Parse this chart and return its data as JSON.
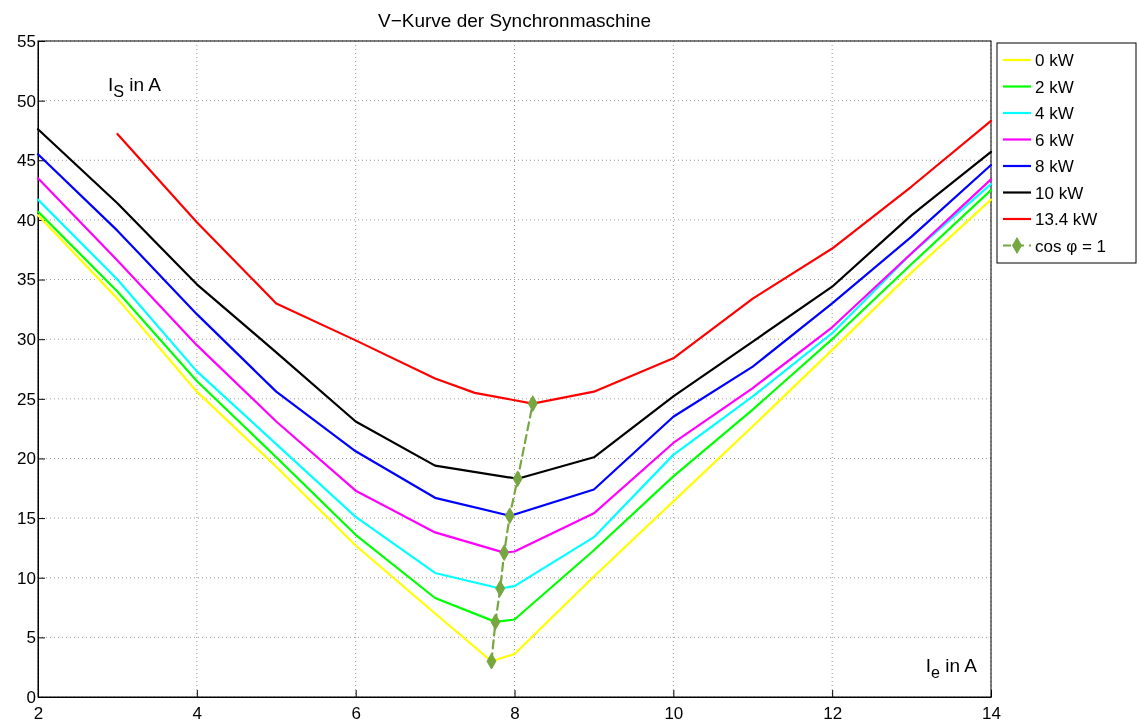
{
  "chart_data": {
    "type": "line",
    "title": "V−Kurve der Synchronmaschine",
    "xlabel": "I$_{e}$ in A",
    "ylabel": "I$_{S}$ in A",
    "xlim": [
      2,
      14
    ],
    "ylim": [
      0,
      55
    ],
    "xticks": [
      2,
      4,
      6,
      8,
      10,
      12,
      14
    ],
    "yticks": [
      0,
      5,
      10,
      15,
      20,
      25,
      30,
      35,
      40,
      45,
      50,
      55
    ],
    "grid": true,
    "legend": "right",
    "series": [
      {
        "name": "0 kW",
        "color": "#ffff00",
        "x": [
          2,
          3,
          4,
          5,
          6,
          7,
          7.71,
          8,
          9,
          10,
          11,
          12,
          13,
          14
        ],
        "values": [
          40.4,
          33.4,
          25.6,
          19.3,
          12.7,
          7.0,
          3.0,
          3.6,
          10.1,
          16.4,
          22.7,
          29.1,
          35.6,
          41.7
        ]
      },
      {
        "name": "2 kW",
        "color": "#00ff00",
        "x": [
          2,
          3,
          4,
          5,
          6,
          7,
          7.76,
          8,
          9,
          10,
          11,
          12,
          13,
          14
        ],
        "values": [
          40.7,
          34.0,
          26.5,
          20.1,
          13.6,
          8.3,
          6.3,
          6.5,
          12.3,
          18.5,
          24.1,
          30.0,
          36.3,
          42.5
        ]
      },
      {
        "name": "4 kW",
        "color": "#00ffff",
        "x": [
          2,
          3,
          4,
          5,
          6,
          7,
          7.82,
          8,
          9,
          10,
          11,
          12,
          13,
          14
        ],
        "values": [
          41.7,
          35.0,
          27.3,
          21.2,
          15.1,
          10.4,
          9.1,
          9.3,
          13.4,
          20.3,
          25.2,
          30.5,
          37.2,
          43.0
        ]
      },
      {
        "name": "6 kW",
        "color": "#ff00ff",
        "x": [
          2,
          3,
          4,
          5,
          6,
          7,
          7.87,
          8,
          9,
          10,
          11,
          12,
          13,
          14
        ],
        "values": [
          43.5,
          36.6,
          29.5,
          23.1,
          17.3,
          13.8,
          12.1,
          12.2,
          15.4,
          21.3,
          25.9,
          31.0,
          37.2,
          43.4
        ]
      },
      {
        "name": "8 kW",
        "color": "#0000ff",
        "x": [
          2,
          3,
          4,
          5,
          6,
          7,
          7.94,
          8,
          9,
          10,
          11,
          12,
          13,
          14
        ],
        "values": [
          45.5,
          39.1,
          32.1,
          25.6,
          20.6,
          16.7,
          15.2,
          15.3,
          17.4,
          23.5,
          27.7,
          33.0,
          38.6,
          44.6
        ]
      },
      {
        "name": "10 kW",
        "color": "#000000",
        "x": [
          2,
          3,
          4,
          5,
          6,
          7,
          8.04,
          9,
          10,
          11,
          12,
          13,
          14
        ],
        "values": [
          47.6,
          41.4,
          34.6,
          28.9,
          23.1,
          19.4,
          18.3,
          20.1,
          25.2,
          29.8,
          34.4,
          40.4,
          45.7
        ]
      },
      {
        "name": "13.4 kW",
        "color": "#ff0000",
        "x": [
          3,
          4,
          5,
          6,
          7,
          7.5,
          8.23,
          9,
          10,
          11,
          12,
          13,
          14
        ],
        "values": [
          47.2,
          39.8,
          33.0,
          29.9,
          26.7,
          25.5,
          24.6,
          25.6,
          28.4,
          33.4,
          37.6,
          42.8,
          48.3
        ]
      },
      {
        "name": "cos φ = 1",
        "color": "#76a640",
        "line_style": "dashed",
        "marker": "diamond",
        "x": [
          7.71,
          7.76,
          7.82,
          7.87,
          7.94,
          8.04,
          8.23
        ],
        "values": [
          3.0,
          6.3,
          9.1,
          12.1,
          15.2,
          18.3,
          24.6
        ]
      }
    ]
  }
}
